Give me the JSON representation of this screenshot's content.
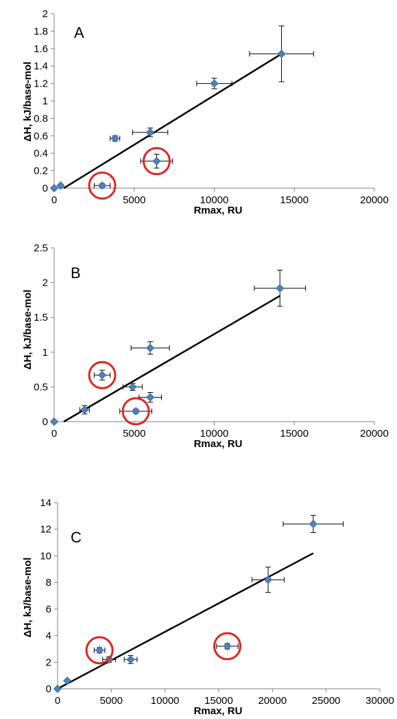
{
  "colors": {
    "point": "#4f81bd",
    "point_edge": "#2f5f98",
    "trend": "#000000",
    "highlight_circle": "#e3241f",
    "axis": "#7f7f7f"
  },
  "chart_data": [
    {
      "type": "scatter",
      "panel_label": "A",
      "xlabel": "Rmax, RU",
      "ylabel": "ΔH, kJ/base-mol",
      "xlim": [
        0,
        20000
      ],
      "ylim": [
        0,
        2
      ],
      "x_ticks": [
        0,
        5000,
        10000,
        15000,
        20000
      ],
      "x_tick_labels": [
        "0",
        "5000",
        "10000",
        "15000",
        "20000"
      ],
      "y_ticks": [
        0,
        0.2,
        0.4,
        0.6,
        0.8,
        1,
        1.2,
        1.4,
        1.6,
        1.8,
        2
      ],
      "y_tick_labels": [
        "0",
        "0.2",
        "0.4",
        "0.6",
        "0.8",
        "1",
        "1.2",
        "1.4",
        "1.6",
        "1.8",
        "2"
      ],
      "grid": false,
      "points": [
        {
          "x": 0,
          "y": 0,
          "xerr": 0,
          "yerr": 0
        },
        {
          "x": 400,
          "y": 0.03,
          "xerr": 0,
          "yerr": 0
        },
        {
          "x": 3000,
          "y": 0.03,
          "xerr": 500,
          "yerr": 0.02
        },
        {
          "x": 3800,
          "y": 0.57,
          "xerr": 300,
          "yerr": 0.03
        },
        {
          "x": 6000,
          "y": 0.64,
          "xerr": 1100,
          "yerr": 0.05
        },
        {
          "x": 6400,
          "y": 0.31,
          "xerr": 1000,
          "yerr": 0.08
        },
        {
          "x": 10000,
          "y": 1.2,
          "xerr": 1100,
          "yerr": 0.06
        },
        {
          "x": 14200,
          "y": 1.54,
          "xerr": 2000,
          "yerr": 0.32
        }
      ],
      "trendline": {
        "x": [
          600,
          14200
        ],
        "y": [
          0,
          1.54
        ]
      },
      "highlighted_points": [
        {
          "x": 3000,
          "y": 0.03
        },
        {
          "x": 6400,
          "y": 0.31
        }
      ]
    },
    {
      "type": "scatter",
      "panel_label": "B",
      "xlabel": "Rmax, RU",
      "ylabel": "ΔH, kJ/base-mol",
      "xlim": [
        0,
        20000
      ],
      "ylim": [
        0,
        2.5
      ],
      "x_ticks": [
        0,
        5000,
        10000,
        15000,
        20000
      ],
      "x_tick_labels": [
        "0",
        "5000",
        "10000",
        "15000",
        "20000"
      ],
      "y_ticks": [
        0,
        0.5,
        1,
        1.5,
        2,
        2.5
      ],
      "y_tick_labels": [
        "0",
        "0.5",
        "1",
        "1.5",
        "2",
        "2.5"
      ],
      "grid": false,
      "points": [
        {
          "x": 0,
          "y": 0,
          "xerr": 0,
          "yerr": 0
        },
        {
          "x": 1900,
          "y": 0.17,
          "xerr": 300,
          "yerr": 0.06
        },
        {
          "x": 3000,
          "y": 0.67,
          "xerr": 500,
          "yerr": 0.07
        },
        {
          "x": 4900,
          "y": 0.5,
          "xerr": 600,
          "yerr": 0.05
        },
        {
          "x": 5100,
          "y": 0.15,
          "xerr": 1000,
          "yerr": 0.03
        },
        {
          "x": 6000,
          "y": 1.06,
          "xerr": 1200,
          "yerr": 0.09
        },
        {
          "x": 6000,
          "y": 0.35,
          "xerr": 700,
          "yerr": 0.07
        },
        {
          "x": 14100,
          "y": 1.92,
          "xerr": 1600,
          "yerr": 0.26
        }
      ],
      "trendline": {
        "x": [
          600,
          14100
        ],
        "y": [
          0,
          1.81
        ]
      },
      "highlighted_points": [
        {
          "x": 3000,
          "y": 0.67
        },
        {
          "x": 5100,
          "y": 0.15
        }
      ]
    },
    {
      "type": "scatter",
      "panel_label": "C",
      "xlabel": "Rmax, RU",
      "ylabel": "ΔH, kJ/base-mol",
      "xlim": [
        0,
        30000
      ],
      "ylim": [
        0,
        14
      ],
      "x_ticks": [
        0,
        5000,
        10000,
        15000,
        20000,
        25000,
        30000
      ],
      "x_tick_labels": [
        "0",
        "5000",
        "10000",
        "15000",
        "20000",
        "25000",
        "30000"
      ],
      "y_ticks": [
        0,
        2,
        4,
        6,
        8,
        10,
        12,
        14
      ],
      "y_tick_labels": [
        "0",
        "2",
        "4",
        "6",
        "8",
        "10",
        "12",
        "14"
      ],
      "grid": false,
      "points": [
        {
          "x": 0,
          "y": 0,
          "xerr": 0,
          "yerr": 0
        },
        {
          "x": 900,
          "y": 0.6,
          "xerr": 0,
          "yerr": 0
        },
        {
          "x": 3900,
          "y": 2.9,
          "xerr": 500,
          "yerr": 0.2
        },
        {
          "x": 4800,
          "y": 2.2,
          "xerr": 600,
          "yerr": 0.2
        },
        {
          "x": 6800,
          "y": 2.2,
          "xerr": 600,
          "yerr": 0.3
        },
        {
          "x": 15800,
          "y": 3.2,
          "xerr": 1000,
          "yerr": 0.2
        },
        {
          "x": 19600,
          "y": 8.2,
          "xerr": 1500,
          "yerr": 0.95
        },
        {
          "x": 23800,
          "y": 12.4,
          "xerr": 2800,
          "yerr": 0.65
        }
      ],
      "trendline": {
        "x": [
          0,
          23800
        ],
        "y": [
          0,
          10.2
        ]
      },
      "highlighted_points": [
        {
          "x": 3900,
          "y": 2.9
        },
        {
          "x": 15800,
          "y": 3.2
        }
      ]
    }
  ]
}
